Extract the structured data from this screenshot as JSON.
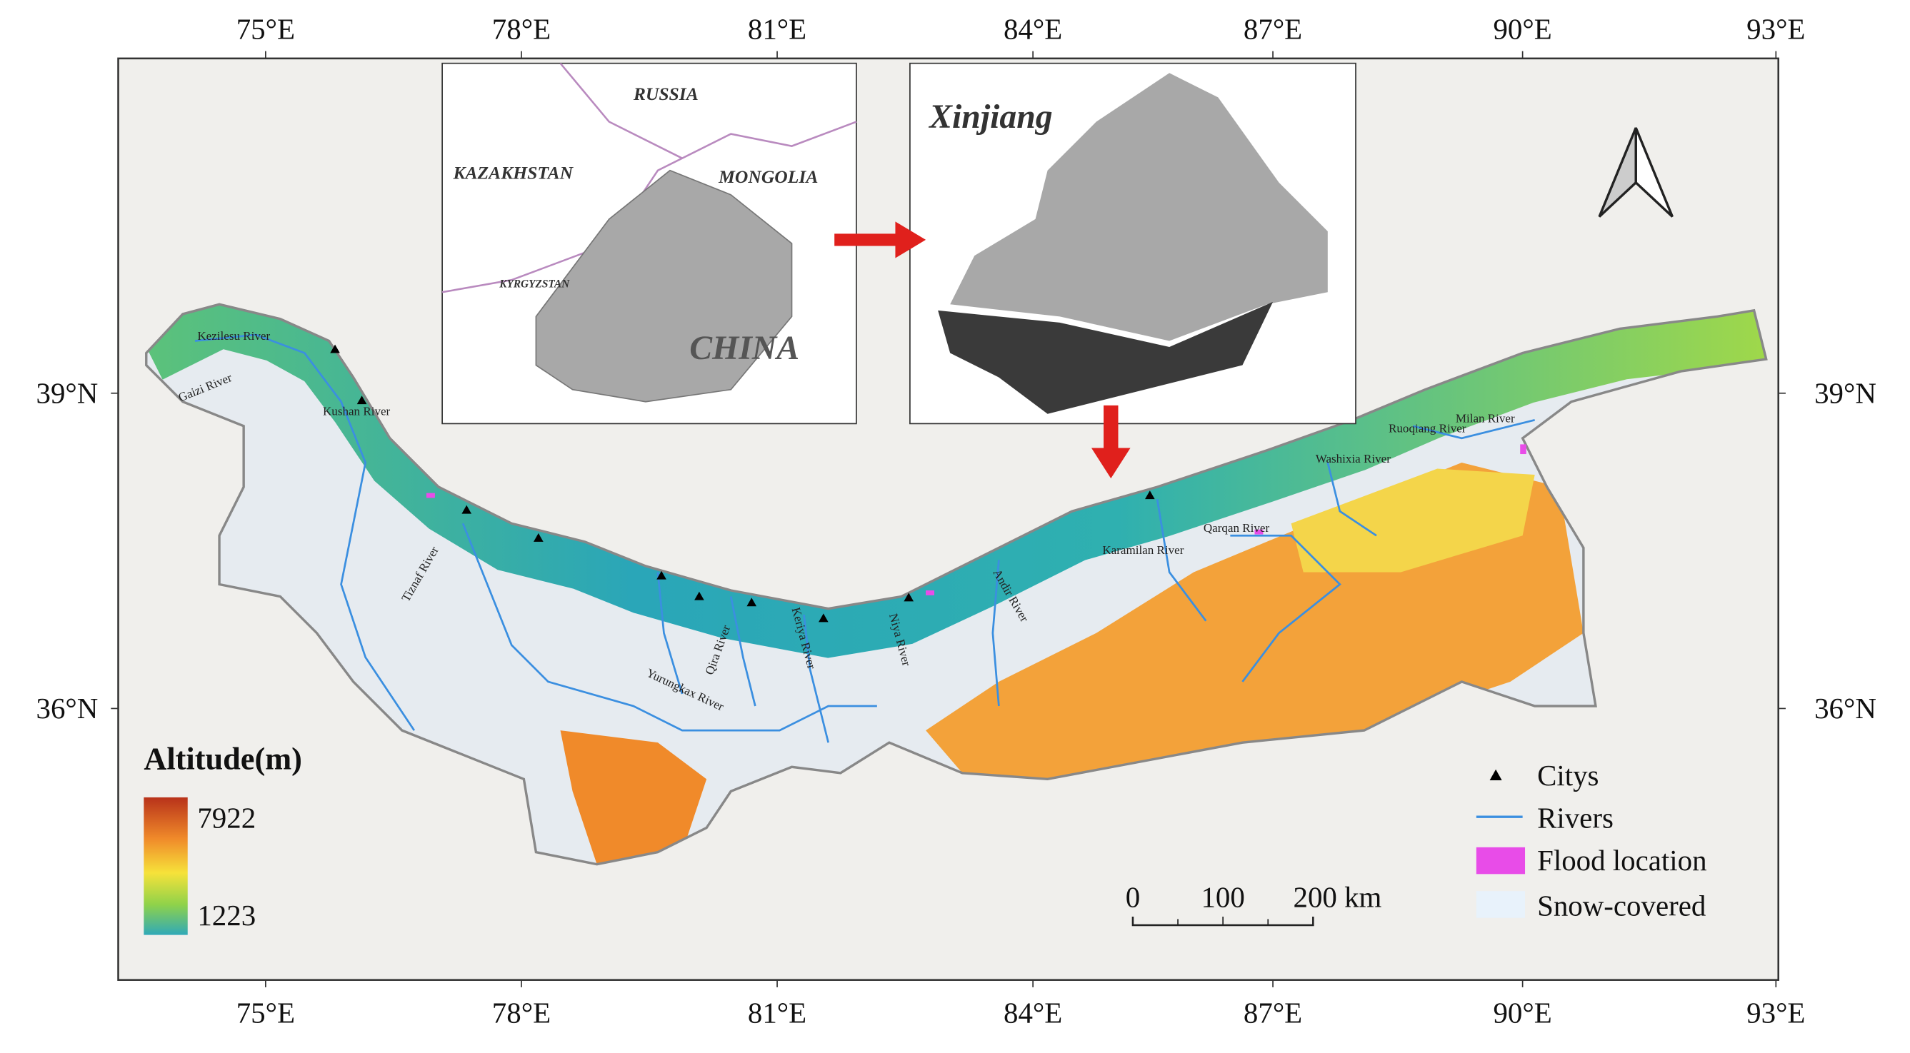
{
  "longitude_labels": [
    "75°E",
    "78°E",
    "81°E",
    "84°E",
    "87°E",
    "90°E",
    "93°E"
  ],
  "latitude_labels": [
    "39°N",
    "36°N"
  ],
  "inset_country": {
    "labels": [
      "RUSSIA",
      "KAZAKHSTAN",
      "MONGOLIA",
      "KYRGYZSTAN",
      "CHINA"
    ]
  },
  "inset_region": {
    "title": "Xinjiang"
  },
  "rivers": [
    "Kezilesu River",
    "Gaizi River",
    "Kushan River",
    "Tiznaf River",
    "Yurungkax River",
    "Qira River",
    "Keriya River",
    "Niya River",
    "Andir River",
    "Karamilan River",
    "Qarqan River",
    "Washixia River",
    "Ruoqiang River",
    "Milan River"
  ],
  "altitude_legend": {
    "title": "Altitude(m)",
    "max": 7922,
    "min": 1223
  },
  "legend": [
    "Citys",
    "Rivers",
    "Flood location",
    "Snow-covered"
  ],
  "scale_bar": [
    0,
    100,
    "200 km"
  ]
}
